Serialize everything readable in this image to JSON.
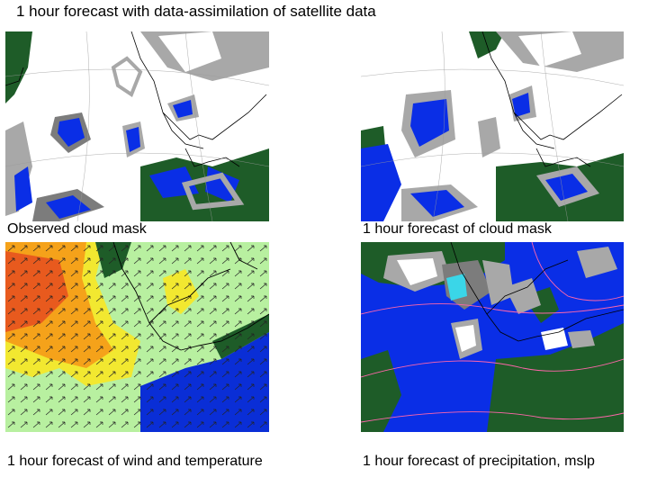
{
  "title": "1 hour forecast with data-assimilation of satellite data",
  "panels": [
    {
      "caption": "Observed cloud mask"
    },
    {
      "caption": "1 hour forecast of cloud mask"
    },
    {
      "caption": "1 hour forecast of wind and temperature"
    },
    {
      "caption": "1 hour forecast of precipitation, mslp"
    }
  ],
  "colors": {
    "land": "#1e5c28",
    "cloud_free_sea": "#0a2ee6",
    "low_cloud": "#a8a8a8",
    "mid_cloud": "#7c7c7c",
    "high_cloud": "#ffffff",
    "warm": "#e85a1e",
    "mild": "#f5a21a",
    "cool": "#f2e830",
    "cold": "#b8f0a0",
    "sea_temp": "#0a2ed6",
    "isobar": "#ff66aa",
    "heavy_precip": "#3ad6e8"
  }
}
